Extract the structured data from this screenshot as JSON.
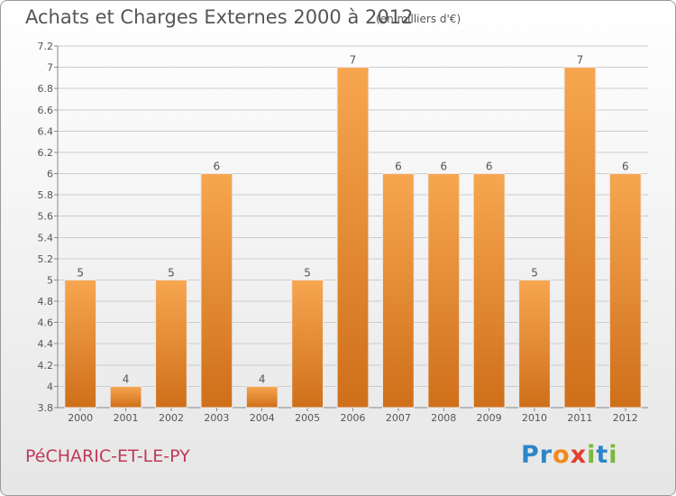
{
  "header": {
    "title": "Achats et Charges Externes 2000 à 2012",
    "unit": "(en milliers d'€)"
  },
  "footer": {
    "commune": "PéCHARIC-ET-LE-PY",
    "logo_letters": [
      {
        "char": "P",
        "color": "#2e86c9"
      },
      {
        "char": "r",
        "color": "#2e86c9"
      },
      {
        "char": "o",
        "color": "#f08a1c"
      },
      {
        "char": "x",
        "color": "#e33d2e"
      },
      {
        "char": "i",
        "color": "#7bb83a"
      },
      {
        "char": "t",
        "color": "#2e86c9"
      },
      {
        "char": "i",
        "color": "#7bb83a"
      }
    ]
  },
  "colors": {
    "bar_top": "#f7a650",
    "bar_bottom": "#cf6f1a",
    "grid": "#cccccc",
    "text": "#555555"
  },
  "chart_data": {
    "type": "bar",
    "categories": [
      "2000",
      "2001",
      "2002",
      "2003",
      "2004",
      "2005",
      "2006",
      "2007",
      "2008",
      "2009",
      "2010",
      "2011",
      "2012"
    ],
    "values": [
      5,
      4,
      5,
      6,
      4,
      5,
      7,
      6,
      6,
      6,
      5,
      7,
      6
    ],
    "value_labels": [
      "5",
      "4",
      "5",
      "6",
      "4",
      "5",
      "7",
      "6",
      "6",
      "6",
      "5",
      "7",
      "6"
    ],
    "ylim": [
      3.8,
      7.2
    ],
    "yticks": [
      3.8,
      4,
      4.2,
      4.4,
      4.6,
      4.8,
      5,
      5.2,
      5.4,
      5.6,
      5.8,
      6,
      6.2,
      6.4,
      6.6,
      6.8,
      7,
      7.2
    ],
    "ytick_labels": [
      "3.8",
      "4",
      "4.2",
      "4.4",
      "4.6",
      "4.8",
      "5",
      "5.2",
      "5.4",
      "5.6",
      "5.8",
      "6",
      "6.2",
      "6.4",
      "6.6",
      "6.8",
      "7",
      "7.2"
    ],
    "grid": true,
    "xlabel": "",
    "ylabel": ""
  }
}
